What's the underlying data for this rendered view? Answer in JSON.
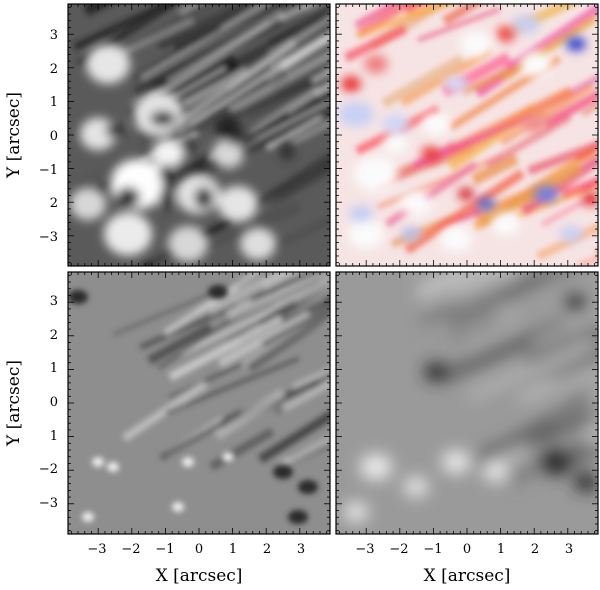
{
  "figure": {
    "panels": [
      {
        "id": "top-left",
        "colormap": "gray",
        "texture": "granulation-bright"
      },
      {
        "id": "top-right",
        "colormap": "bwr",
        "texture": "signed-patches"
      },
      {
        "id": "bottom-left",
        "colormap": "gray",
        "texture": "filaments-mid"
      },
      {
        "id": "bottom-right",
        "colormap": "gray",
        "texture": "smooth-mid"
      }
    ],
    "x_axis_label": "X [arcsec]",
    "y_axis_label": "Y [arcsec]",
    "x_tick_labels": [
      "−3",
      "−2",
      "−1",
      "0",
      "1",
      "2",
      "3"
    ],
    "y_tick_labels": [
      "3",
      "2",
      "1",
      "0",
      "−1",
      "2",
      "−3"
    ],
    "y_tick_labels_bottom": [
      "3",
      "2",
      "1",
      "0",
      "1",
      "−2",
      "−3"
    ],
    "colors": {
      "frame": "#000000",
      "positive": "#e02020",
      "negative": "#2040c0",
      "neutral": "#ffffff"
    }
  }
}
